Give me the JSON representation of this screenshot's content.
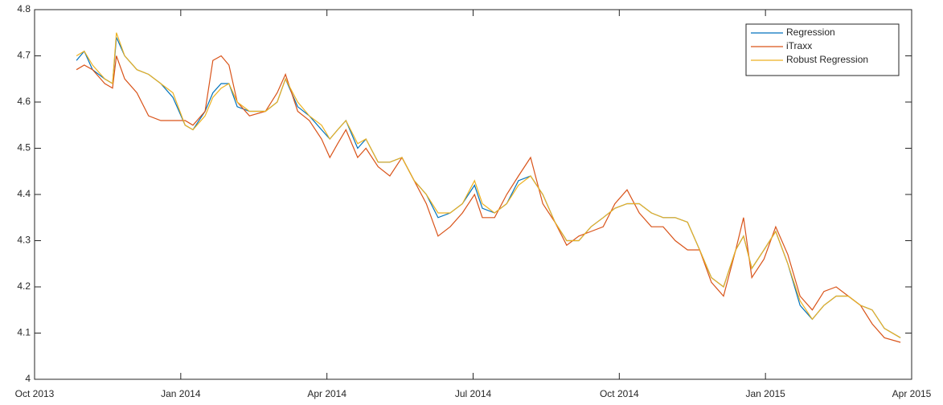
{
  "chart_data": {
    "type": "line",
    "x": [
      0.86,
      1.02,
      1.19,
      1.44,
      1.6,
      1.68,
      1.85,
      2.1,
      2.34,
      2.59,
      2.84,
      3.09,
      3.25,
      3.5,
      3.66,
      3.83,
      3.99,
      4.16,
      4.41,
      4.74,
      4.98,
      5.15,
      5.4,
      5.64,
      5.89,
      6.06,
      6.22,
      6.39,
      6.63,
      6.8,
      7.05,
      7.29,
      7.54,
      7.79,
      8.04,
      8.28,
      8.53,
      8.78,
      9.03,
      9.19,
      9.44,
      9.69,
      9.93,
      10.18,
      10.43,
      10.68,
      10.92,
      11.17,
      11.42,
      11.67,
      11.91,
      12.16,
      12.41,
      12.66,
      12.9,
      13.15,
      13.4,
      13.65,
      13.89,
      14.14,
      14.39,
      14.55,
      14.72,
      14.97,
      15.21,
      15.46,
      15.71,
      15.96,
      16.2,
      16.45,
      16.7,
      16.95,
      17.19,
      17.44,
      17.77
    ],
    "series": [
      {
        "name": "Regression",
        "color": "#0072bd",
        "values": [
          4.69,
          4.71,
          4.67,
          4.65,
          4.64,
          4.74,
          4.7,
          4.67,
          4.66,
          4.64,
          4.61,
          4.55,
          4.54,
          4.58,
          4.62,
          4.64,
          4.64,
          4.59,
          4.58,
          4.58,
          4.6,
          4.65,
          4.59,
          4.57,
          4.54,
          4.52,
          4.54,
          4.56,
          4.5,
          4.52,
          4.47,
          4.47,
          4.48,
          4.43,
          4.4,
          4.35,
          4.36,
          4.38,
          4.42,
          4.37,
          4.36,
          4.38,
          4.43,
          4.44,
          4.4,
          4.34,
          4.3,
          4.3,
          4.33,
          4.35,
          4.37,
          4.38,
          4.38,
          4.36,
          4.35,
          4.35,
          4.34,
          4.28,
          4.22,
          4.2,
          4.28,
          4.31,
          4.24,
          4.28,
          4.32,
          4.25,
          4.16,
          4.13,
          4.16,
          4.18,
          4.18,
          4.16,
          4.15,
          4.11,
          4.09
        ]
      },
      {
        "name": "iTraxx",
        "color": "#d95319",
        "values": [
          4.67,
          4.68,
          4.67,
          4.64,
          4.63,
          4.7,
          4.65,
          4.62,
          4.57,
          4.56,
          4.56,
          4.56,
          4.55,
          4.58,
          4.69,
          4.7,
          4.68,
          4.6,
          4.57,
          4.58,
          4.62,
          4.66,
          4.58,
          4.56,
          4.52,
          4.48,
          4.51,
          4.54,
          4.48,
          4.5,
          4.46,
          4.44,
          4.48,
          4.43,
          4.38,
          4.31,
          4.33,
          4.36,
          4.4,
          4.35,
          4.35,
          4.4,
          4.44,
          4.48,
          4.38,
          4.34,
          4.29,
          4.31,
          4.32,
          4.33,
          4.38,
          4.41,
          4.36,
          4.33,
          4.33,
          4.3,
          4.28,
          4.28,
          4.21,
          4.18,
          4.28,
          4.35,
          4.22,
          4.26,
          4.33,
          4.27,
          4.18,
          4.15,
          4.19,
          4.2,
          4.18,
          4.16,
          4.12,
          4.09,
          4.08
        ]
      },
      {
        "name": "Robust Regression",
        "color": "#edb120",
        "values": [
          4.7,
          4.71,
          4.68,
          4.65,
          4.64,
          4.75,
          4.7,
          4.67,
          4.66,
          4.64,
          4.62,
          4.55,
          4.54,
          4.57,
          4.61,
          4.63,
          4.64,
          4.6,
          4.58,
          4.58,
          4.6,
          4.65,
          4.6,
          4.57,
          4.55,
          4.52,
          4.54,
          4.56,
          4.51,
          4.52,
          4.47,
          4.47,
          4.48,
          4.43,
          4.4,
          4.36,
          4.36,
          4.38,
          4.43,
          4.38,
          4.36,
          4.38,
          4.42,
          4.44,
          4.4,
          4.34,
          4.3,
          4.3,
          4.33,
          4.35,
          4.37,
          4.38,
          4.38,
          4.36,
          4.35,
          4.35,
          4.34,
          4.28,
          4.22,
          4.2,
          4.28,
          4.31,
          4.24,
          4.28,
          4.32,
          4.25,
          4.17,
          4.13,
          4.16,
          4.18,
          4.18,
          4.16,
          4.15,
          4.11,
          4.09
        ]
      }
    ],
    "xlim": [
      0,
      18
    ],
    "xticks": [
      {
        "value": 0,
        "label": "Oct 2013"
      },
      {
        "value": 3,
        "label": "Jan 2014"
      },
      {
        "value": 6,
        "label": "Apr 2014"
      },
      {
        "value": 9,
        "label": "Jul 2014"
      },
      {
        "value": 12,
        "label": "Oct 2014"
      },
      {
        "value": 15,
        "label": "Jan 2015"
      },
      {
        "value": 18,
        "label": "Apr 2015"
      }
    ],
    "ylim": [
      4,
      4.8
    ],
    "yticks": [
      4,
      4.1,
      4.2,
      4.3,
      4.4,
      4.5,
      4.6,
      4.7,
      4.8
    ],
    "grid": false,
    "legend": "top-right"
  }
}
